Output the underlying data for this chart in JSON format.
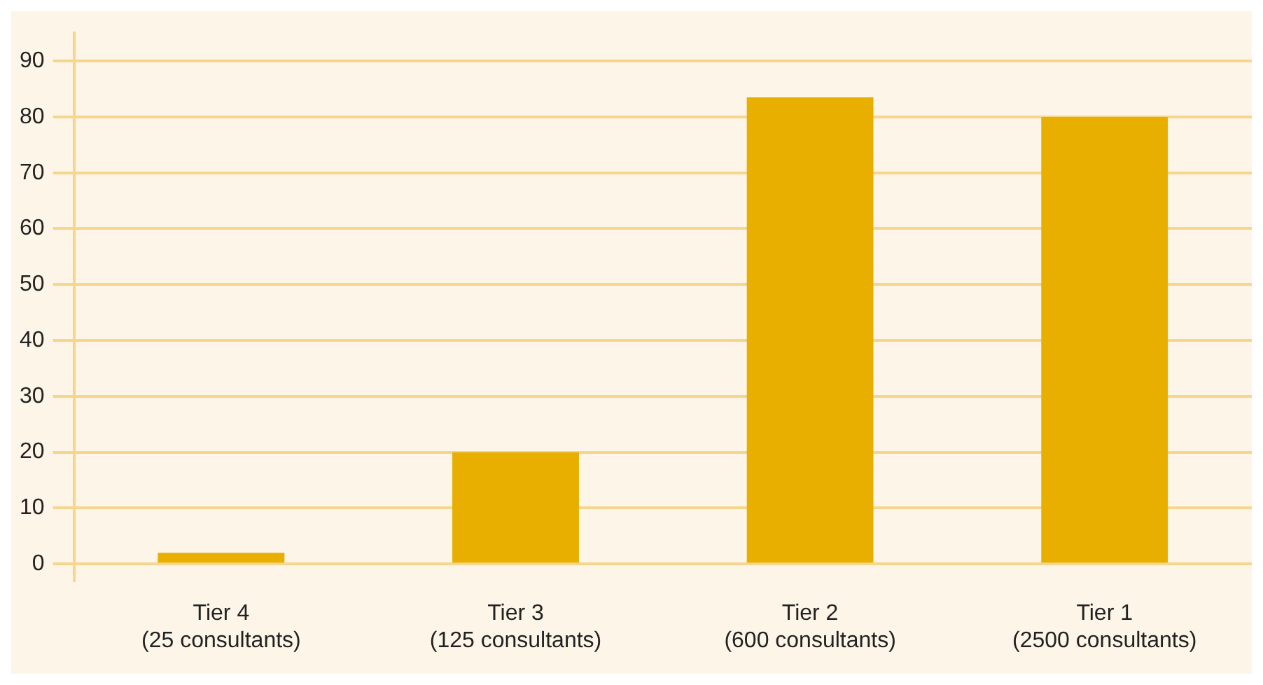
{
  "chart_data": {
    "type": "bar",
    "categories": [
      "Tier 4\n(25 consultants)",
      "Tier 3\n(125 consultants)",
      "Tier 2\n(600 consultants)",
      "Tier 1\n(2500 consultants)"
    ],
    "values": [
      2,
      20,
      83.5,
      80
    ],
    "color": "#e8ae00",
    "ylim": [
      -3,
      95
    ],
    "yticks": [
      0,
      10,
      20,
      30,
      40,
      50,
      60,
      70,
      80,
      90
    ],
    "grid": "y"
  }
}
